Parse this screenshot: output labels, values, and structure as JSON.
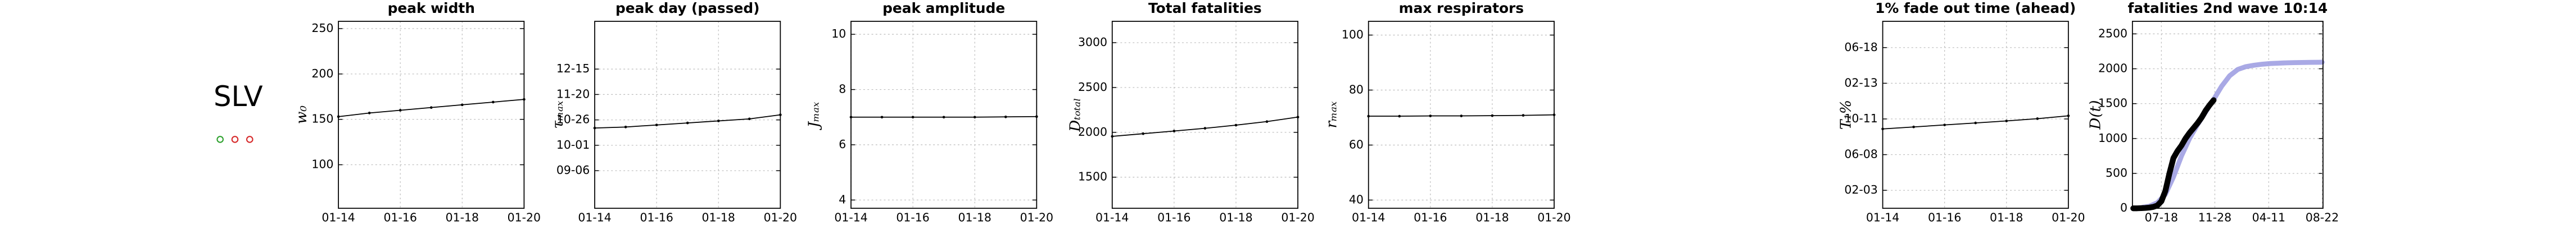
{
  "region": "SLV",
  "chart_data": [
    {
      "type": "line",
      "title": "peak width",
      "ylabel": "w₀",
      "categories": [
        "01-14",
        null,
        "01-16",
        null,
        "01-18",
        null,
        "01-20"
      ],
      "values": [
        153,
        157,
        160,
        163,
        166,
        169,
        172
      ],
      "color": "#000000",
      "ylim": [
        52,
        258
      ],
      "yticks": [
        100,
        150,
        200,
        250
      ],
      "grid": true
    },
    {
      "type": "line",
      "title": "peak day (passed)",
      "ylabel": "τₘₐₓ",
      "categories": [
        "01-14",
        null,
        "01-16",
        null,
        "01-18",
        null,
        "01-20"
      ],
      "values": [
        291,
        292,
        294,
        296,
        298,
        300,
        304
      ],
      "color": "#000000",
      "ylim": [
        212,
        396
      ],
      "yticks": [
        {
          "value": 249,
          "label": "09-06"
        },
        {
          "value": 274,
          "label": "10-01"
        },
        {
          "value": 299,
          "label": "10-26"
        },
        {
          "value": 324,
          "label": "11-20"
        },
        {
          "value": 349,
          "label": "12-15"
        }
      ],
      "grid": true
    },
    {
      "type": "line",
      "title": "peak amplitude",
      "ylabel": "Jₘₐₓ",
      "categories": [
        "01-14",
        null,
        "01-16",
        null,
        "01-18",
        null,
        "01-20"
      ],
      "values": [
        7.0,
        7.0,
        7.0,
        7.0,
        7.0,
        7.01,
        7.02
      ],
      "color": "#000000",
      "ylim": [
        3.7,
        10.47
      ],
      "yticks": [
        4,
        6,
        8,
        10
      ],
      "grid": true
    },
    {
      "type": "line",
      "title": "Total fatalities",
      "ylabel": "Dₜₒₜₐₗ",
      "categories": [
        "01-14",
        null,
        "01-16",
        null,
        "01-18",
        null,
        "01-20"
      ],
      "values": [
        1955,
        1985,
        2015,
        2045,
        2080,
        2120,
        2170
      ],
      "color": "#000000",
      "ylim": [
        1153,
        3238
      ],
      "yticks": [
        1500,
        2000,
        2500,
        3000
      ],
      "grid": true
    },
    {
      "type": "line",
      "title": "max respirators",
      "ylabel": "rₘₐₓ",
      "categories": [
        "01-14",
        null,
        "01-16",
        null,
        "01-18",
        null,
        "01-20"
      ],
      "values": [
        70.5,
        70.5,
        70.6,
        70.6,
        70.7,
        70.8,
        71
      ],
      "color": "#000000",
      "ylim": [
        37,
        105
      ],
      "yticks": [
        40,
        60,
        80,
        100
      ],
      "grid": true
    },
    {
      "type": "line",
      "title": "1% fade out time (ahead)",
      "ylabel": "T₁%",
      "categories": [
        "01-14",
        null,
        "01-16",
        null,
        "01-18",
        null,
        "01-20"
      ],
      "values": [
        215,
        222,
        229,
        236,
        243,
        251,
        261
      ],
      "color": "#000000",
      "ylim": [
        -63,
        592
      ],
      "yticks": [
        {
          "value": 0,
          "label": "02-03"
        },
        {
          "value": 125,
          "label": "06-08"
        },
        {
          "value": 250,
          "label": "10-11"
        },
        {
          "value": 375,
          "label": "02-13"
        },
        {
          "value": 500,
          "label": "06-18"
        }
      ],
      "grid": true
    },
    {
      "type": "curve",
      "title": "fatalities 2nd wave 10:14",
      "ylabel": "D(t)",
      "series": [
        {
          "color": "#9a9ae0",
          "x": [
            -70,
            -50,
            -30,
            -10,
            10,
            30,
            50,
            70,
            90,
            110,
            130,
            150,
            170,
            190,
            210,
            230,
            250,
            270,
            290,
            310,
            330,
            350,
            370,
            390,
            400
          ],
          "values": [
            0,
            10,
            30,
            80,
            200,
            450,
            750,
            1000,
            1200,
            1380,
            1560,
            1750,
            1900,
            1990,
            2030,
            2050,
            2065,
            2075,
            2080,
            2085,
            2088,
            2090,
            2092,
            2093,
            2094
          ]
        },
        {
          "color": "#000000",
          "x": [
            -70,
            -60,
            -50,
            -40,
            -30,
            -20,
            -10,
            0,
            10,
            20,
            30,
            40,
            50,
            60,
            70,
            80,
            90,
            100,
            110,
            120,
            130
          ],
          "values": [
            0,
            0,
            2,
            5,
            10,
            20,
            40,
            100,
            250,
            500,
            720,
            820,
            900,
            1000,
            1080,
            1150,
            1220,
            1300,
            1400,
            1480,
            1550
          ]
        }
      ],
      "xlim": [
        -72,
        402
      ],
      "xticks": [
        {
          "value": 0,
          "label": "07-18"
        },
        {
          "value": 133,
          "label": "11-28"
        },
        {
          "value": 267,
          "label": "04-11"
        },
        {
          "value": 400,
          "label": "08-22"
        }
      ],
      "ylim": [
        0,
        2680
      ],
      "yticks": [
        0,
        500,
        1000,
        1500,
        2000,
        2500
      ],
      "grid": true
    }
  ]
}
